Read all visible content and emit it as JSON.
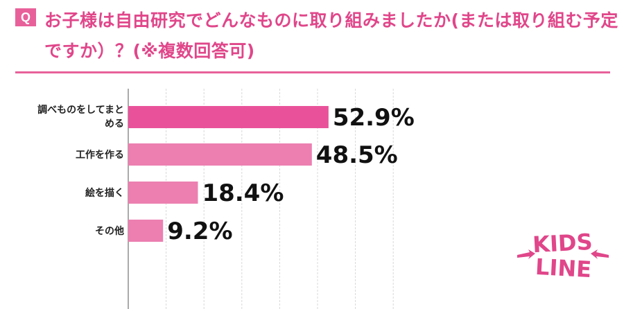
{
  "header": {
    "q_mark": "Q",
    "title": "お子様は自由研究でどんなものに取り組みましたか(または取り組む予定ですか）？(※複数回答可)"
  },
  "chart_data": {
    "type": "bar",
    "orientation": "horizontal",
    "categories": [
      "調べものをしてまとめる",
      "工作を作る",
      "絵を描く",
      "その他"
    ],
    "category_lines": [
      [
        "調べものをしてまと",
        "める"
      ],
      [
        "工作を作る"
      ],
      [
        "絵を描く"
      ],
      [
        "その他"
      ]
    ],
    "values": [
      52.9,
      48.5,
      18.4,
      9.2
    ],
    "value_labels": [
      "52.9%",
      "48.5%",
      "18.4%",
      "9.2%"
    ],
    "xlim": [
      0,
      70
    ],
    "grid": true,
    "colors": {
      "top_bar": "#e9529a",
      "bar": "#ec7fb0",
      "grid": "#d8d8d8",
      "axis": "#555555"
    }
  },
  "logo": {
    "line1": "KIDS",
    "line2": "LINE"
  }
}
